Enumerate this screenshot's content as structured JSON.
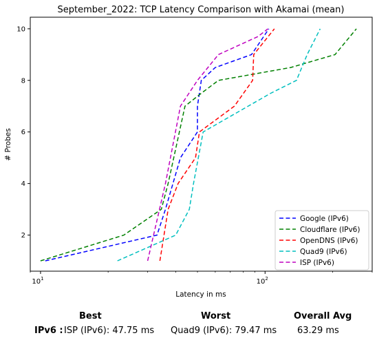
{
  "chart_data": {
    "type": "line",
    "title": "September_2022: TCP Latency Comparison with Akamai (mean)",
    "xlabel": "Latency in ms",
    "ylabel": "# Probes",
    "xscale": "log",
    "xlim": [
      9,
      300
    ],
    "ylim": [
      0.6,
      10.45
    ],
    "xticks": [
      {
        "value": 10,
        "label": "10^1"
      },
      {
        "value": 100,
        "label": "10^2"
      }
    ],
    "yticks": [
      2,
      4,
      6,
      8,
      10
    ],
    "legend": "bottom-right",
    "line_style": "dashed",
    "series": [
      {
        "name": "Google (IPv6)",
        "color": "#0000ff",
        "x": [
          10.5,
          33,
          36,
          42,
          50,
          50,
          52,
          60,
          87,
          104
        ],
        "y": [
          1,
          2,
          3,
          5,
          6,
          7,
          8,
          8.5,
          9,
          10
        ]
      },
      {
        "name": "Cloudflare (IPv6)",
        "color": "#008000",
        "x": [
          10,
          23.5,
          34.5,
          37,
          44,
          52,
          62,
          130,
          205,
          255
        ],
        "y": [
          1,
          2,
          3,
          4,
          7,
          7.5,
          8,
          8.5,
          9,
          10
        ]
      },
      {
        "name": "OpenDNS (IPv6)",
        "color": "#ff0000",
        "x": [
          34,
          37,
          41,
          49,
          51,
          73,
          88,
          89,
          110
        ],
        "y": [
          1,
          3,
          4,
          5,
          6,
          7,
          8,
          9,
          10
        ]
      },
      {
        "name": "Quad9 (IPv6)",
        "color": "#00bfbf",
        "x": [
          22,
          40,
          46,
          48,
          53,
          106,
          138,
          154,
          176
        ],
        "y": [
          1,
          2,
          3,
          4,
          6,
          7.5,
          8,
          9,
          10
        ]
      },
      {
        "name": "ISP (IPv6)",
        "color": "#bf00bf",
        "x": [
          30,
          36,
          42,
          50,
          62,
          93,
          103
        ],
        "y": [
          1,
          4,
          7,
          8,
          9,
          9.7,
          10
        ]
      }
    ]
  },
  "summary": {
    "best_header": "Best",
    "worst_header": "Worst",
    "avg_header": "Overall Avg",
    "protocol": "IPv6 :",
    "best": "ISP (IPv6): 47.75 ms",
    "worst": "Quad9 (IPv6): 79.47 ms",
    "avg": "63.29 ms"
  }
}
